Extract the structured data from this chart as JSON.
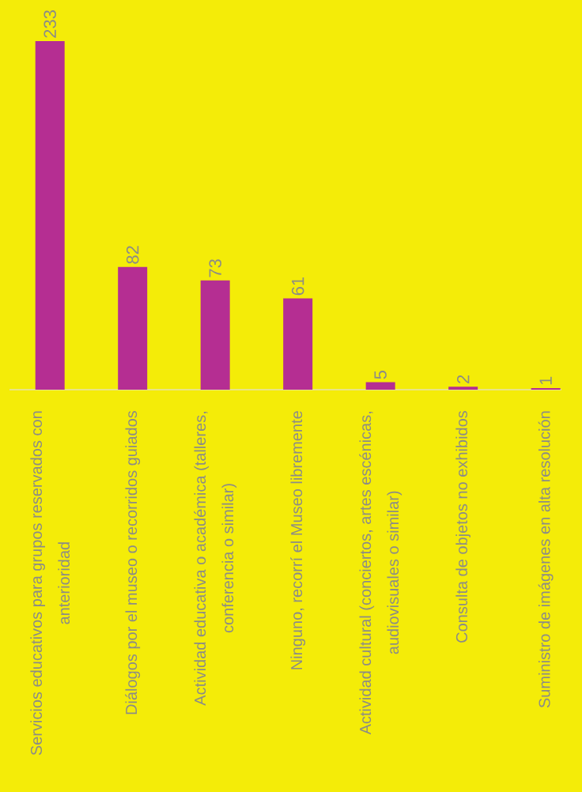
{
  "chart_data": {
    "type": "bar",
    "categories": [
      "Servicios educativos para grupos reservados con anterioridad",
      "Diálogos por el museo o recorridos guiados",
      "Actividad educativa o académica (talleres, conferencia o similar)",
      "Ninguno, recorrí el Museo libremente",
      "Actividad cultural (conciertos, artes escénicas, audiovisuales o similar)",
      "Consulta de objetos no exhibidos",
      "Suministro de imágenes en alta resolución"
    ],
    "values": [
      233,
      82,
      73,
      61,
      5,
      2,
      1
    ],
    "color": "#b52e92",
    "data_labels": true
  }
}
